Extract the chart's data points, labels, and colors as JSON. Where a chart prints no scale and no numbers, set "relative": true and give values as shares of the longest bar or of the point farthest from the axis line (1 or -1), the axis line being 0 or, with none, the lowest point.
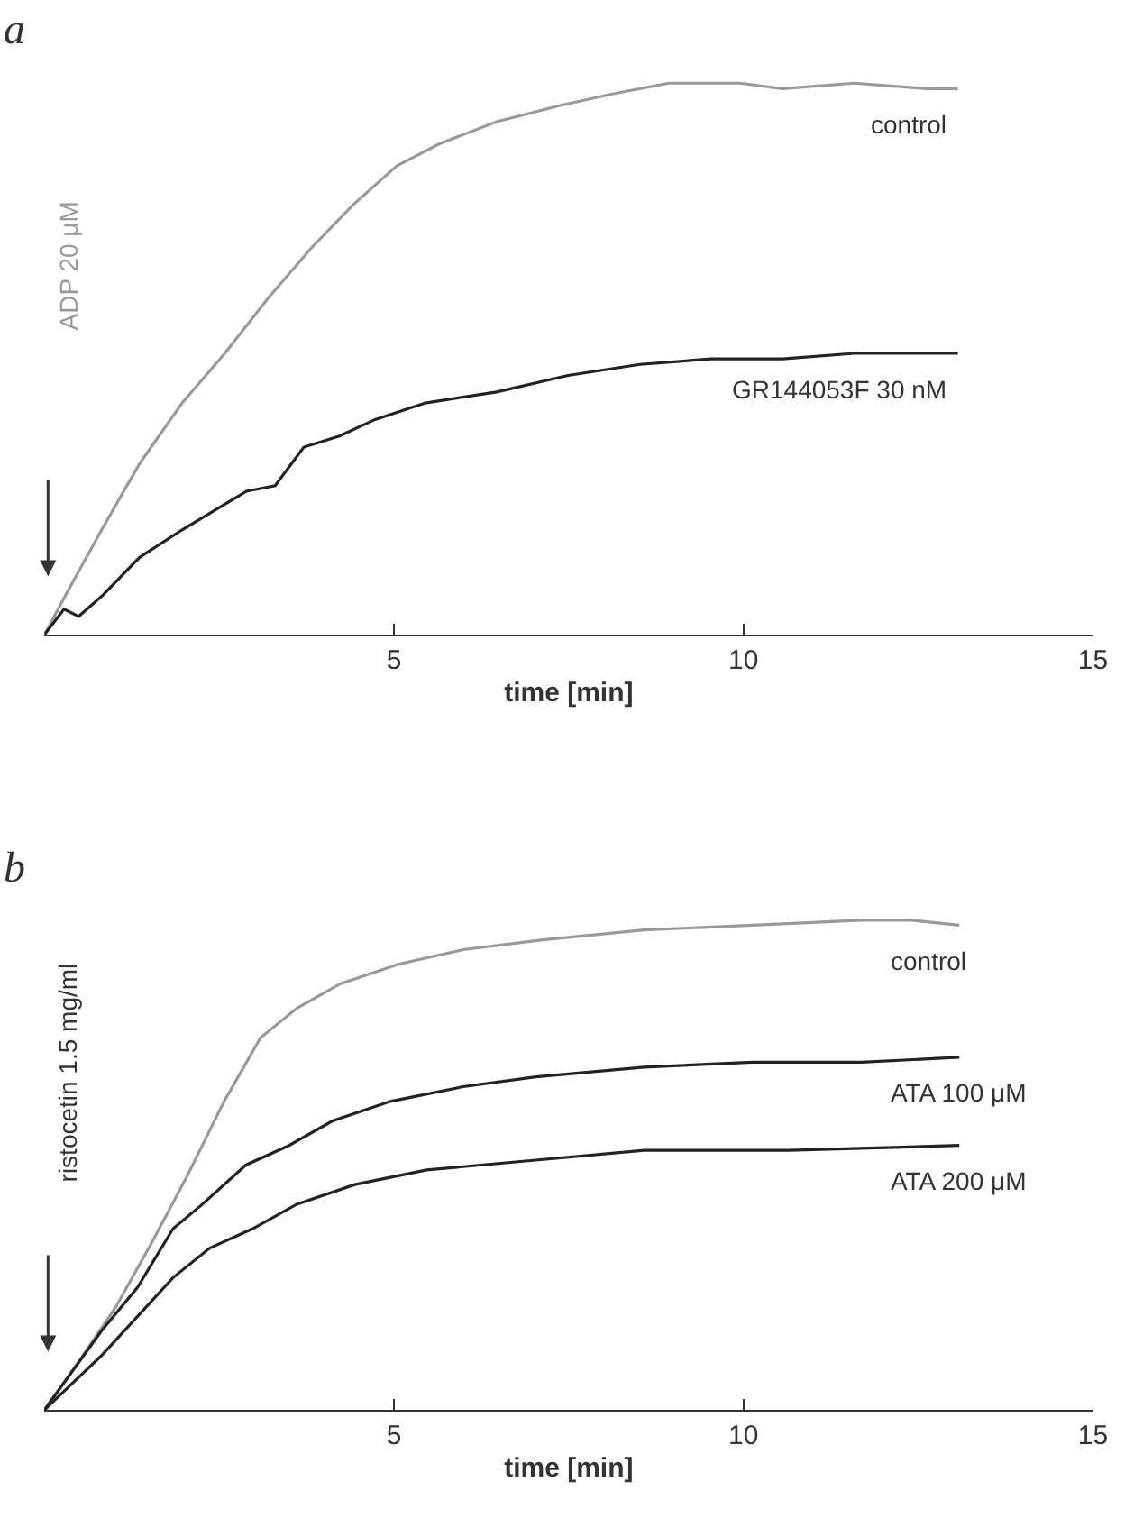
{
  "chart_data": [
    {
      "type": "line",
      "title": "a",
      "xlabel": "time [min]",
      "ylabel": "ADP 20 μM",
      "relative": true,
      "xlim": [
        0,
        15
      ],
      "xticks": [
        5,
        10,
        15
      ],
      "series": [
        {
          "name": "control",
          "color": "#999999",
          "x": [
            0,
            0.33,
            0.84,
            1.36,
            1.97,
            2.58,
            3.2,
            3.81,
            4.42,
            5.04,
            5.65,
            6.47,
            7.39,
            8.11,
            8.93,
            9.95,
            10.56,
            11.59,
            12.61,
            13.07
          ],
          "values": [
            0,
            0.078,
            0.195,
            0.31,
            0.42,
            0.51,
            0.61,
            0.7,
            0.78,
            0.85,
            0.89,
            0.93,
            0.96,
            0.98,
            1.0,
            1.0,
            0.99,
            1.0,
            0.99,
            0.99
          ]
        },
        {
          "name": "GR144053F 30 nM",
          "color": "#222222",
          "x": [
            0,
            0.28,
            0.49,
            0.84,
            1.36,
            1.97,
            2.89,
            3.3,
            3.71,
            4.22,
            4.73,
            5.45,
            6.47,
            7.49,
            8.52,
            9.54,
            10.56,
            11.59,
            13.07
          ],
          "values": [
            0,
            0.046,
            0.033,
            0.072,
            0.14,
            0.19,
            0.26,
            0.27,
            0.34,
            0.36,
            0.39,
            0.42,
            0.44,
            0.47,
            0.49,
            0.5,
            0.5,
            0.51,
            0.51
          ]
        }
      ]
    },
    {
      "type": "line",
      "title": "b",
      "xlabel": "time [min]",
      "ylabel": "ristocetin 1.5 mg/ml",
      "relative": true,
      "xlim": [
        0,
        15
      ],
      "xticks": [
        5,
        10,
        15
      ],
      "series": [
        {
          "name": "control",
          "color": "#999999",
          "x": [
            0,
            0.5,
            1.02,
            1.53,
            2.05,
            2.57,
            3.09,
            3.61,
            4.23,
            5.06,
            5.99,
            7.13,
            8.58,
            10.13,
            11.69,
            12.41,
            13.09
          ],
          "values": [
            0,
            0.1,
            0.21,
            0.34,
            0.48,
            0.63,
            0.76,
            0.82,
            0.87,
            0.91,
            0.94,
            0.96,
            0.98,
            0.99,
            1.0,
            1.0,
            0.99
          ]
        },
        {
          "name": "ATA 100 μM",
          "color": "#222222",
          "x": [
            0,
            0.81,
            1.33,
            1.84,
            2.26,
            2.88,
            3.5,
            4.12,
            4.95,
            5.99,
            7.03,
            8.58,
            10.13,
            11.69,
            13.09
          ],
          "values": [
            0,
            0.16,
            0.25,
            0.37,
            0.42,
            0.5,
            0.54,
            0.59,
            0.63,
            0.66,
            0.68,
            0.7,
            0.71,
            0.71,
            0.72
          ]
        },
        {
          "name": "ATA 200 μM",
          "color": "#222222",
          "x": [
            0,
            0.81,
            1.84,
            2.36,
            2.98,
            3.61,
            4.44,
            5.47,
            7.03,
            8.58,
            10.65,
            13.09
          ],
          "values": [
            0,
            0.11,
            0.27,
            0.33,
            0.37,
            0.42,
            0.46,
            0.49,
            0.51,
            0.53,
            0.53,
            0.54
          ]
        }
      ]
    }
  ]
}
